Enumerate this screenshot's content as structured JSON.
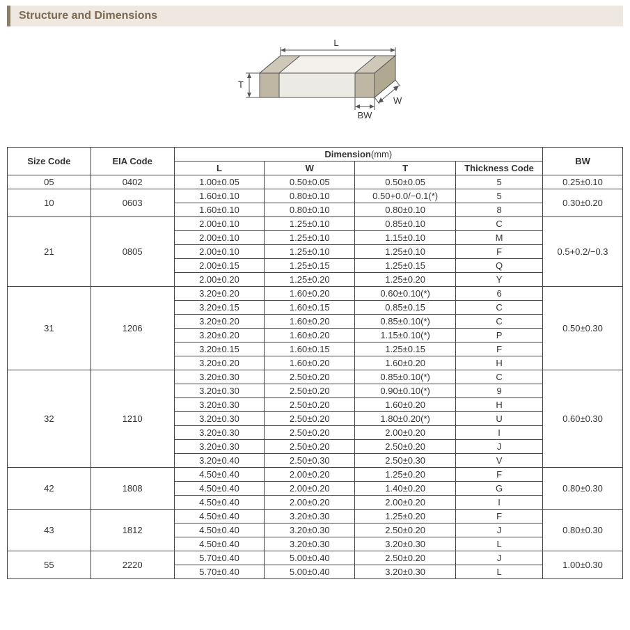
{
  "title": "Structure and Dimensions",
  "diagram": {
    "labels": {
      "L": "L",
      "W": "W",
      "T": "T",
      "BW": "BW"
    },
    "stroke": "#555555",
    "fill_top": "#f4f1ec",
    "fill_side": "#d8d3c8",
    "fill_front": "#eceae4",
    "fill_band": "#bfb7a4"
  },
  "headers": {
    "size_code": "Size Code",
    "eia_code": "EIA Code",
    "dimension": "Dimension",
    "dimension_unit": "(mm)",
    "L": "L",
    "W": "W",
    "T": "T",
    "thickness_code": "Thickness  Code",
    "BW": "BW"
  },
  "groups": [
    {
      "size_code": "05",
      "eia_code": "0402",
      "bw": "0.25±0.10",
      "rows": [
        {
          "L": "1.00±0.05",
          "W": "0.50±0.05",
          "T": "0.50±0.05",
          "tc": "5"
        }
      ]
    },
    {
      "size_code": "10",
      "eia_code": "0603",
      "bw": "0.30±0.20",
      "rows": [
        {
          "L": "1.60±0.10",
          "W": "0.80±0.10",
          "T": "0.50+0.0/−0.1(*)",
          "tc": "5"
        },
        {
          "L": "1.60±0.10",
          "W": "0.80±0.10",
          "T": "0.80±0.10",
          "tc": "8"
        }
      ]
    },
    {
      "size_code": "21",
      "eia_code": "0805",
      "bw": "0.5+0.2/−0.3",
      "rows": [
        {
          "L": "2.00±0.10",
          "W": "1.25±0.10",
          "T": "0.85±0.10",
          "tc": "C"
        },
        {
          "L": "2.00±0.10",
          "W": "1.25±0.10",
          "T": "1.15±0.10",
          "tc": "M"
        },
        {
          "L": "2.00±0.10",
          "W": "1.25±0.10",
          "T": "1.25±0.10",
          "tc": "F"
        },
        {
          "L": "2.00±0.15",
          "W": "1.25±0.15",
          "T": "1.25±0.15",
          "tc": "Q"
        },
        {
          "L": "2.00±0.20",
          "W": "1.25±0.20",
          "T": "1.25±0.20",
          "tc": "Y"
        }
      ]
    },
    {
      "size_code": "31",
      "eia_code": "1206",
      "bw": "0.50±0.30",
      "rows": [
        {
          "L": "3.20±0.20",
          "W": "1.60±0.20",
          "T": "0.60±0.10(*)",
          "tc": "6"
        },
        {
          "L": "3.20±0.15",
          "W": "1.60±0.15",
          "T": "0.85±0.15",
          "tc": "C"
        },
        {
          "L": "3.20±0.20",
          "W": "1.60±0.20",
          "T": "0.85±0.10(*)",
          "tc": "C"
        },
        {
          "L": "3.20±0.20",
          "W": "1.60±0.20",
          "T": "1.15±0.10(*)",
          "tc": "P"
        },
        {
          "L": "3.20±0.15",
          "W": "1.60±0.15",
          "T": "1.25±0.15",
          "tc": "F"
        },
        {
          "L": "3.20±0.20",
          "W": "1.60±0.20",
          "T": "1.60±0.20",
          "tc": "H"
        }
      ]
    },
    {
      "size_code": "32",
      "eia_code": "1210",
      "bw": "0.60±0.30",
      "rows": [
        {
          "L": "3.20±0.30",
          "W": "2.50±0.20",
          "T": "0.85±0.10(*)",
          "tc": "C"
        },
        {
          "L": "3.20±0.30",
          "W": "2.50±0.20",
          "T": "0.90±0.10(*)",
          "tc": "9"
        },
        {
          "L": "3.20±0.30",
          "W": "2.50±0.20",
          "T": "1.60±0.20",
          "tc": "H"
        },
        {
          "L": "3.20±0.30",
          "W": "2.50±0.20",
          "T": "1.80±0.20(*)",
          "tc": "U"
        },
        {
          "L": "3.20±0.30",
          "W": "2.50±0.20",
          "T": "2.00±0.20",
          "tc": "I"
        },
        {
          "L": "3.20±0.30",
          "W": "2.50±0.20",
          "T": "2.50±0.20",
          "tc": "J"
        },
        {
          "L": "3.20±0.40",
          "W": "2.50±0.30",
          "T": "2.50±0.30",
          "tc": "V"
        }
      ]
    },
    {
      "size_code": "42",
      "eia_code": "1808",
      "bw": "0.80±0.30",
      "rows": [
        {
          "L": "4.50±0.40",
          "W": "2.00±0.20",
          "T": "1.25±0.20",
          "tc": "F"
        },
        {
          "L": "4.50±0.40",
          "W": "2.00±0.20",
          "T": "1.40±0.20",
          "tc": "G"
        },
        {
          "L": "4.50±0.40",
          "W": "2.00±0.20",
          "T": "2.00±0.20",
          "tc": "I"
        }
      ]
    },
    {
      "size_code": "43",
      "eia_code": "1812",
      "bw": "0.80±0.30",
      "rows": [
        {
          "L": "4.50±0.40",
          "W": "3.20±0.30",
          "T": "1.25±0.20",
          "tc": "F"
        },
        {
          "L": "4.50±0.40",
          "W": "3.20±0.30",
          "T": "2.50±0.20",
          "tc": "J"
        },
        {
          "L": "4.50±0.40",
          "W": "3.20±0.30",
          "T": "3.20±0.30",
          "tc": "L"
        }
      ]
    },
    {
      "size_code": "55",
      "eia_code": "2220",
      "bw": "1.00±0.30",
      "rows": [
        {
          "L": "5.70±0.40",
          "W": "5.00±0.40",
          "T": "2.50±0.20",
          "tc": "J"
        },
        {
          "L": "5.70±0.40",
          "W": "5.00±0.40",
          "T": "3.20±0.30",
          "tc": "L"
        }
      ]
    }
  ],
  "colwidths": {
    "size_code": 120,
    "eia_code": 120,
    "L": 130,
    "W": 130,
    "T": 145,
    "tc": 125,
    "bw": 115
  },
  "colors": {
    "border": "#444444",
    "text": "#333333",
    "title_bg": "#eee8e0",
    "title_accent": "#888068",
    "title_text": "#7a6a50"
  }
}
